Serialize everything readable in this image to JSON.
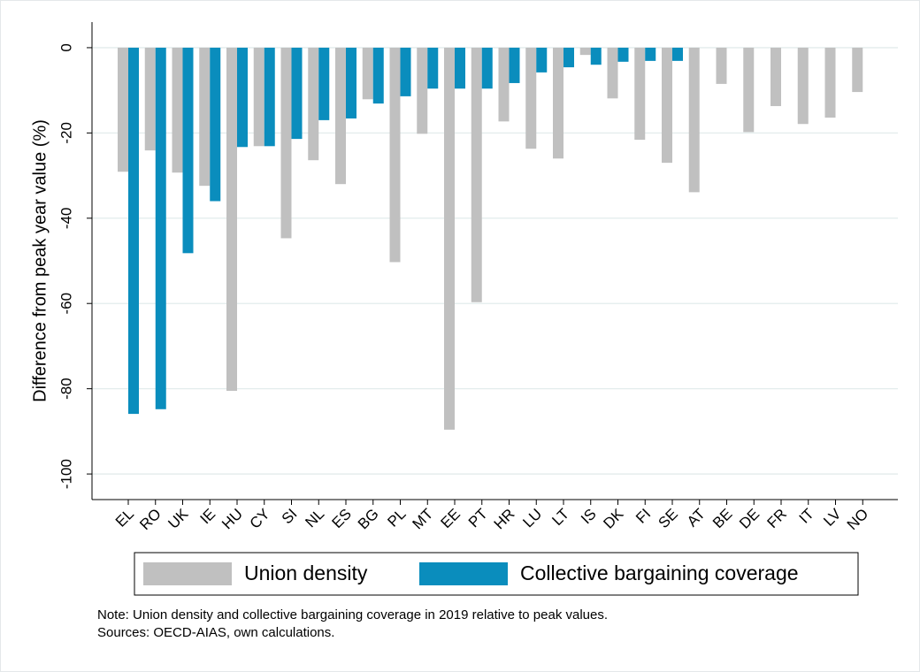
{
  "chart_data": {
    "type": "bar",
    "y_label": "Difference from peak year value (%)",
    "notes": [
      "Note: Union density and collective bargaining coverage in 2019 relative to peak values.",
      "Sources: OECD-AIAS, own calculations."
    ],
    "categories": [
      "EL",
      "RO",
      "UK",
      "IE",
      "HU",
      "CY",
      "SI",
      "NL",
      "ES",
      "BG",
      "PL",
      "MT",
      "EE",
      "PT",
      "HR",
      "LU",
      "LT",
      "IS",
      "DK",
      "FI",
      "SE",
      "AT",
      "BE",
      "DE",
      "FR",
      "IT",
      "LV",
      "NO"
    ],
    "series": [
      {
        "name": "Union density",
        "color": "#c0c0c0",
        "values": [
          -29.1,
          -24.1,
          -29.3,
          -32.4,
          -80.5,
          -23.1,
          -44.7,
          -26.4,
          -32.0,
          -12.1,
          -50.3,
          -20.2,
          -89.6,
          -59.7,
          -17.3,
          -23.7,
          -26.0,
          -1.7,
          -11.9,
          -21.6,
          -27.0,
          -33.9,
          -8.5,
          -19.8,
          -13.7,
          -17.9,
          -16.4,
          -10.4
        ]
      },
      {
        "name": "Collective bargaining coverage",
        "color": "#0a8dbd",
        "values": [
          -85.9,
          -84.8,
          -48.2,
          -36.0,
          -23.3,
          -23.1,
          -21.4,
          -17.0,
          -16.6,
          -13.1,
          -11.4,
          -9.6,
          -9.6,
          -9.6,
          -8.3,
          -5.8,
          -4.6,
          -4.0,
          -3.3,
          -3.1,
          -3.1,
          null,
          null,
          null,
          null,
          null,
          null,
          null
        ]
      }
    ],
    "ylim": [
      -106,
      6
    ],
    "yticks": [
      0,
      -20,
      -40,
      -60,
      -80,
      -100
    ],
    "grid": true
  }
}
